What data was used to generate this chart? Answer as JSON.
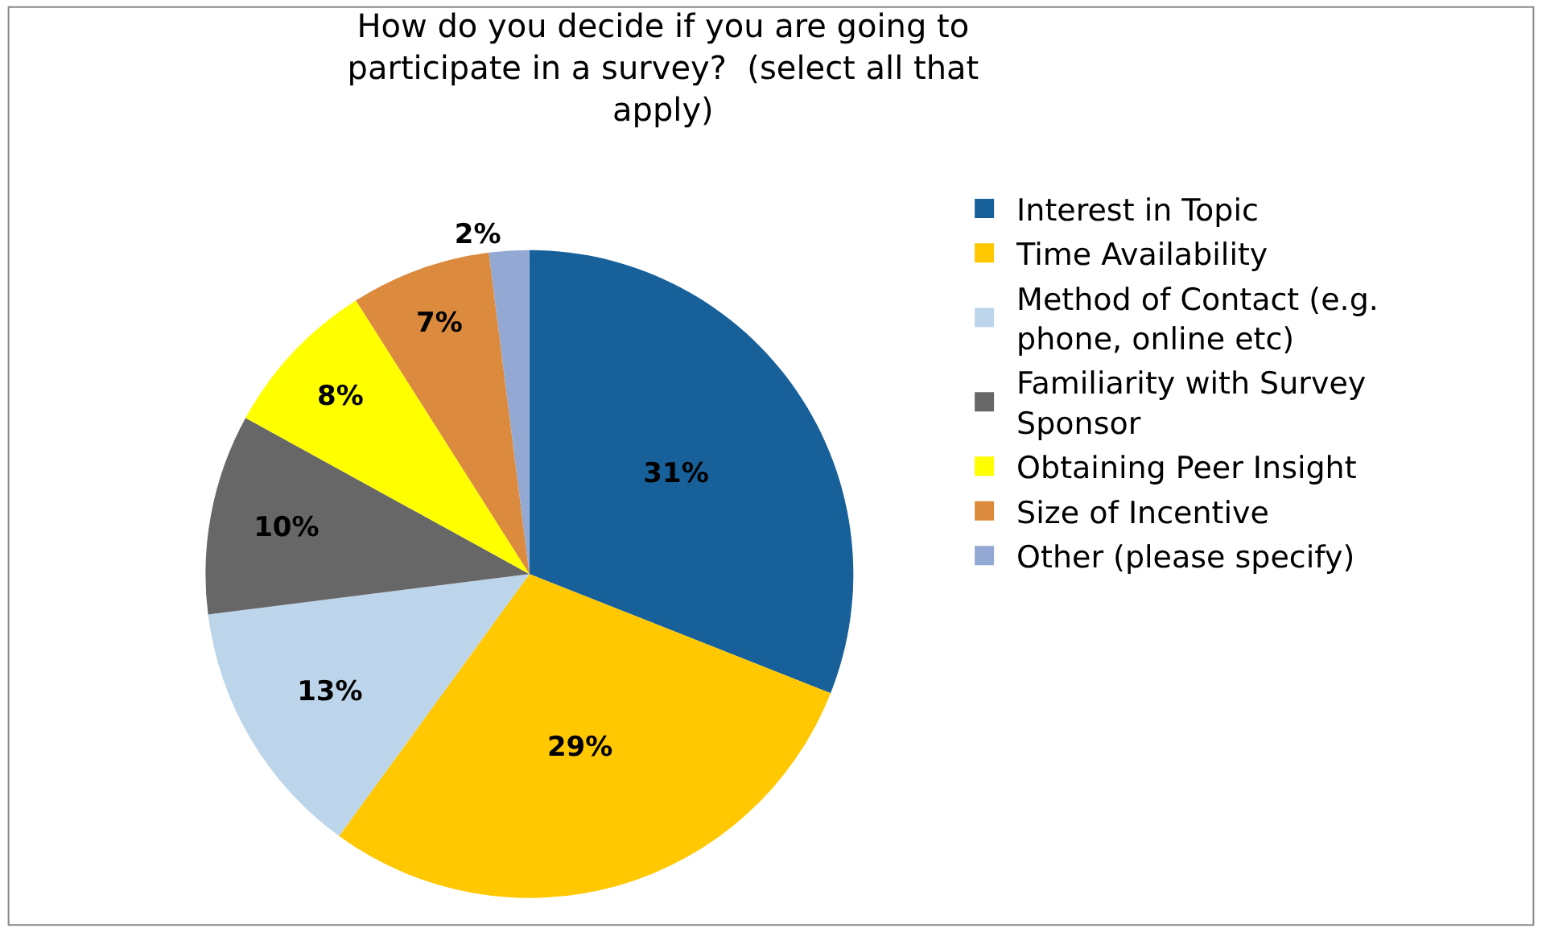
{
  "chart_data": {
    "type": "pie",
    "title": "How do you decide if you are going to participate in a survey?  (select all that apply)",
    "categories": [
      "Interest in Topic",
      "Time Availability",
      "Method of Contact (e.g. phone, online etc)",
      "Familiarity with Survey Sponsor",
      "Obtaining Peer Insight",
      "Size of Incentive",
      "Other (please specify)"
    ],
    "values": [
      31,
      29,
      13,
      10,
      8,
      7,
      2
    ],
    "value_labels": [
      "31%",
      "29%",
      "13%",
      "10%",
      "8%",
      "7%",
      "2%"
    ],
    "colors": [
      "#17609a",
      "#ffc800",
      "#bdd5ea",
      "#676767",
      "#ffff00",
      "#dc8a3e",
      "#93a9d3"
    ],
    "legend": "right"
  }
}
